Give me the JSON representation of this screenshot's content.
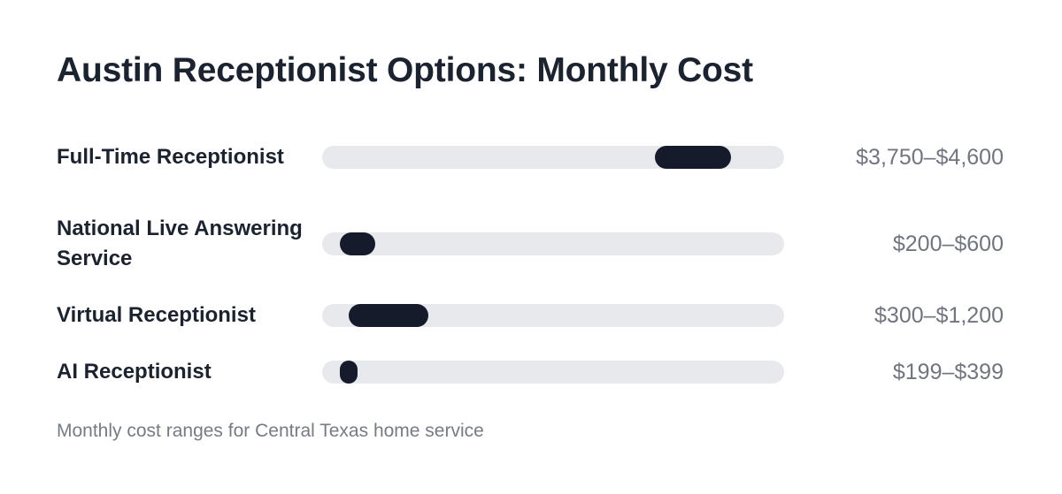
{
  "chart_data": {
    "type": "bar",
    "title": "Austin Receptionist Options: Monthly Cost",
    "caption": "Monthly cost ranges for Central Texas home service",
    "orientation": "horizontal-range",
    "xlim": [
      0,
      5200
    ],
    "colors": {
      "track": "#e7e9ec",
      "bar": "#151b2b",
      "value_text": "#70757f",
      "title": "#1b2230"
    },
    "categories": [
      {
        "label": "Full-Time Receptionist",
        "low": 3750,
        "high": 4600,
        "range_text": "$3,750–$4,600"
      },
      {
        "label": "National Live Answering Service",
        "low": 200,
        "high": 600,
        "range_text": "$200–$600"
      },
      {
        "label": "Virtual Receptionist",
        "low": 300,
        "high": 1200,
        "range_text": "$300–$1,200"
      },
      {
        "label": "AI Receptionist",
        "low": 199,
        "high": 399,
        "range_text": "$199–$399"
      }
    ]
  }
}
